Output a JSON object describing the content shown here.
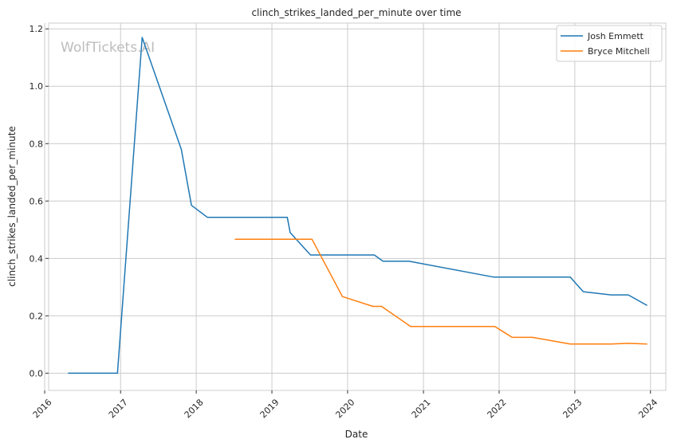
{
  "chart_data": {
    "type": "line",
    "title": "clinch_strikes_landed_per_minute over time",
    "xlabel": "Date",
    "ylabel": "clinch_strikes_landed_per_minute",
    "watermark": "WolfTickets.AI",
    "xlim": [
      "2016-01-20",
      "2024-03-15"
    ],
    "ylim": [
      -0.06,
      1.22
    ],
    "x_ticks": [
      "2016",
      "2017",
      "2018",
      "2019",
      "2020",
      "2021",
      "2022",
      "2023",
      "2024"
    ],
    "y_ticks": [
      "0.0",
      "0.2",
      "0.4",
      "0.6",
      "0.8",
      "1.0",
      "1.2"
    ],
    "grid": true,
    "legend_position": "top-right",
    "series": [
      {
        "name": "Josh Emmett",
        "color": "#1f77b4",
        "x": [
          "2016-04-23",
          "2016-12-17",
          "2017-04-15",
          "2017-10-21",
          "2017-12-09",
          "2018-02-24",
          "2019-03-16",
          "2019-03-30",
          "2019-07-06",
          "2020-05-09",
          "2020-06-20",
          "2020-10-24",
          "2021-12-04",
          "2022-06-18",
          "2022-12-10",
          "2023-02-11",
          "2023-06-24",
          "2023-09-16",
          "2023-12-16"
        ],
        "values": [
          0.0,
          0.0,
          1.17,
          0.78,
          0.585,
          0.543,
          0.543,
          0.49,
          0.412,
          0.412,
          0.39,
          0.39,
          0.335,
          0.335,
          0.335,
          0.284,
          0.273,
          0.273,
          0.236
        ]
      },
      {
        "name": "Bryce Mitchell",
        "color": "#ff7f0e",
        "x": [
          "2018-07-06",
          "2019-07-13",
          "2019-12-07",
          "2020-05-02",
          "2020-06-13",
          "2020-10-31",
          "2021-12-11",
          "2022-03-05",
          "2022-06-11",
          "2022-12-10",
          "2023-06-24",
          "2023-09-16",
          "2023-12-16"
        ],
        "values": [
          0.467,
          0.467,
          0.267,
          0.233,
          0.233,
          0.163,
          0.163,
          0.125,
          0.125,
          0.102,
          0.102,
          0.104,
          0.102
        ]
      }
    ]
  }
}
